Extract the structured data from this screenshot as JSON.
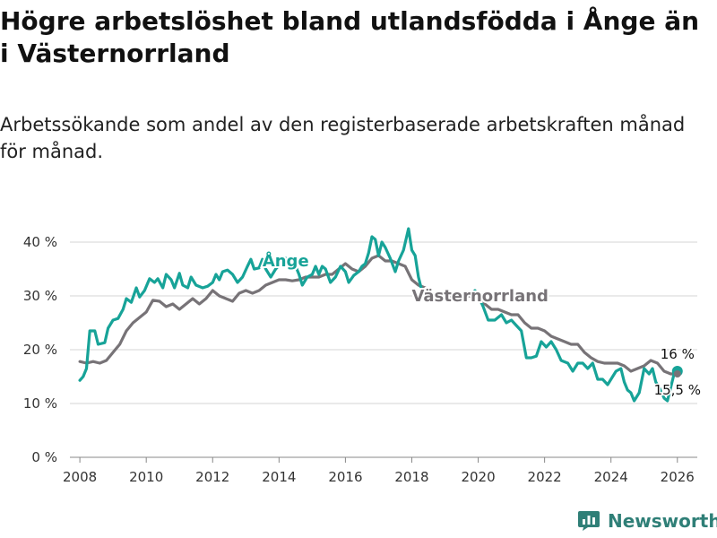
{
  "title": "Högre arbetslöshet bland utlandsfödda i Ånge än i Västernorrland",
  "subtitle": "Arbetssökande som andel av den registerbaserade arbetskraften månad för månad.",
  "brand": "Newsworthy",
  "colors": {
    "ange": "#17a398",
    "vasternorrland": "#777377",
    "grid": "#d6d6d6",
    "brand": "#2f7f77"
  },
  "chart_data": {
    "type": "line",
    "title": "Högre arbetslöshet bland utlandsfödda i Ånge än i Västernorrland",
    "xlabel": "",
    "ylabel": "",
    "xlim": [
      2007.7,
      2026.6
    ],
    "ylim": [
      0,
      40
    ],
    "x_ticks": [
      2008,
      2010,
      2012,
      2014,
      2016,
      2018,
      2020,
      2022,
      2024,
      2026
    ],
    "x_tick_labels": [
      "2008",
      "2010",
      "2012",
      "2014",
      "2016",
      "2018",
      "2020",
      "2022",
      "2024",
      "2026"
    ],
    "y_ticks": [
      0,
      10,
      20,
      30,
      40
    ],
    "y_tick_labels": [
      "0 %",
      "10 %",
      "20 %",
      "30 %",
      "40 %"
    ],
    "series": [
      {
        "name": "Ånge",
        "label": "Ånge",
        "color": "#17a398",
        "points": [
          [
            2008.0,
            14.3
          ],
          [
            2008.1,
            15
          ],
          [
            2008.2,
            16.5
          ],
          [
            2008.3,
            23.5
          ],
          [
            2008.45,
            23.5
          ],
          [
            2008.55,
            21
          ],
          [
            2008.75,
            21.3
          ],
          [
            2008.85,
            24
          ],
          [
            2009.0,
            25.5
          ],
          [
            2009.15,
            25.8
          ],
          [
            2009.3,
            27.5
          ],
          [
            2009.4,
            29.5
          ],
          [
            2009.55,
            28.8
          ],
          [
            2009.7,
            31.5
          ],
          [
            2009.8,
            29.8
          ],
          [
            2009.95,
            31
          ],
          [
            2010.1,
            33.2
          ],
          [
            2010.25,
            32.5
          ],
          [
            2010.35,
            33.2
          ],
          [
            2010.5,
            31.5
          ],
          [
            2010.6,
            34
          ],
          [
            2010.75,
            33
          ],
          [
            2010.85,
            31.5
          ],
          [
            2011.0,
            34.2
          ],
          [
            2011.1,
            32
          ],
          [
            2011.25,
            31.5
          ],
          [
            2011.35,
            33.5
          ],
          [
            2011.5,
            32
          ],
          [
            2011.7,
            31.5
          ],
          [
            2011.85,
            31.8
          ],
          [
            2012.0,
            32.5
          ],
          [
            2012.1,
            34
          ],
          [
            2012.2,
            33
          ],
          [
            2012.3,
            34.5
          ],
          [
            2012.45,
            34.8
          ],
          [
            2012.6,
            34
          ],
          [
            2012.75,
            32.5
          ],
          [
            2012.9,
            33.5
          ],
          [
            2013.05,
            35.5
          ],
          [
            2013.15,
            36.8
          ],
          [
            2013.25,
            35
          ],
          [
            2013.4,
            35.2
          ],
          [
            2013.5,
            36.8
          ],
          [
            2013.6,
            35
          ],
          [
            2013.75,
            33.5
          ],
          [
            2013.9,
            35
          ],
          [
            2014.05,
            36
          ],
          [
            2014.2,
            37
          ],
          [
            2014.35,
            36
          ],
          [
            2014.5,
            35.5
          ],
          [
            2014.6,
            34
          ],
          [
            2014.7,
            32
          ],
          [
            2014.85,
            33.5
          ],
          [
            2015.0,
            34
          ],
          [
            2015.1,
            35.5
          ],
          [
            2015.2,
            34
          ],
          [
            2015.3,
            35.5
          ],
          [
            2015.4,
            35
          ],
          [
            2015.55,
            32.5
          ],
          [
            2015.7,
            33.5
          ],
          [
            2015.85,
            35.5
          ],
          [
            2016.0,
            34.5
          ],
          [
            2016.1,
            32.5
          ],
          [
            2016.25,
            33.8
          ],
          [
            2016.4,
            34.5
          ],
          [
            2016.5,
            35.5
          ],
          [
            2016.6,
            36
          ],
          [
            2016.7,
            38
          ],
          [
            2016.8,
            41
          ],
          [
            2016.9,
            40.5
          ],
          [
            2017.0,
            37.5
          ],
          [
            2017.1,
            40
          ],
          [
            2017.2,
            39
          ],
          [
            2017.35,
            37
          ],
          [
            2017.5,
            34.5
          ],
          [
            2017.6,
            36.5
          ],
          [
            2017.75,
            38.5
          ],
          [
            2017.9,
            42.5
          ],
          [
            2018.0,
            38.5
          ],
          [
            2018.1,
            37.5
          ],
          [
            2018.2,
            33.5
          ],
          [
            2018.3,
            31
          ]
        ]
      },
      {
        "name": "Ånge (2020–2026)",
        "label": "",
        "color": "#17a398",
        "points": [
          [
            2019.9,
            31
          ],
          [
            2020.0,
            30
          ],
          [
            2020.15,
            28
          ],
          [
            2020.3,
            25.5
          ],
          [
            2020.5,
            25.5
          ],
          [
            2020.7,
            26.5
          ],
          [
            2020.85,
            25
          ],
          [
            2021.0,
            25.5
          ],
          [
            2021.15,
            24.5
          ],
          [
            2021.3,
            23.5
          ],
          [
            2021.45,
            18.5
          ],
          [
            2021.6,
            18.5
          ],
          [
            2021.75,
            18.8
          ],
          [
            2021.9,
            21.5
          ],
          [
            2022.05,
            20.5
          ],
          [
            2022.2,
            21.5
          ],
          [
            2022.35,
            20
          ],
          [
            2022.5,
            18
          ],
          [
            2022.7,
            17.5
          ],
          [
            2022.85,
            16
          ],
          [
            2023.0,
            17.5
          ],
          [
            2023.15,
            17.5
          ],
          [
            2023.3,
            16.5
          ],
          [
            2023.45,
            17.5
          ],
          [
            2023.6,
            14.5
          ],
          [
            2023.75,
            14.5
          ],
          [
            2023.9,
            13.5
          ],
          [
            2024.0,
            14.5
          ],
          [
            2024.15,
            16
          ],
          [
            2024.3,
            16.5
          ],
          [
            2024.4,
            14
          ],
          [
            2024.5,
            12.5
          ],
          [
            2024.6,
            12
          ],
          [
            2024.7,
            10.5
          ],
          [
            2024.85,
            12
          ],
          [
            2025.0,
            16.5
          ],
          [
            2025.15,
            15.5
          ],
          [
            2025.25,
            16.5
          ],
          [
            2025.35,
            14
          ],
          [
            2025.45,
            13
          ],
          [
            2025.6,
            11
          ],
          [
            2025.7,
            10.5
          ],
          [
            2025.8,
            13
          ],
          [
            2025.9,
            15.5
          ],
          [
            2026.0,
            16
          ]
        ]
      },
      {
        "name": "Västernorrland",
        "label": "Västernorrland",
        "color": "#777377",
        "points": [
          [
            2008.0,
            17.8
          ],
          [
            2008.2,
            17.5
          ],
          [
            2008.4,
            17.8
          ],
          [
            2008.6,
            17.5
          ],
          [
            2008.8,
            18
          ],
          [
            2009.0,
            19.5
          ],
          [
            2009.2,
            21
          ],
          [
            2009.4,
            23.5
          ],
          [
            2009.6,
            25
          ],
          [
            2009.8,
            26
          ],
          [
            2010.0,
            27
          ],
          [
            2010.2,
            29.2
          ],
          [
            2010.4,
            29
          ],
          [
            2010.6,
            28
          ],
          [
            2010.8,
            28.5
          ],
          [
            2011.0,
            27.5
          ],
          [
            2011.2,
            28.5
          ],
          [
            2011.4,
            29.5
          ],
          [
            2011.6,
            28.5
          ],
          [
            2011.8,
            29.5
          ],
          [
            2012.0,
            31
          ],
          [
            2012.2,
            30
          ],
          [
            2012.4,
            29.5
          ],
          [
            2012.6,
            29
          ],
          [
            2012.8,
            30.5
          ],
          [
            2013.0,
            31
          ],
          [
            2013.2,
            30.5
          ],
          [
            2013.4,
            31
          ],
          [
            2013.6,
            32
          ],
          [
            2013.8,
            32.5
          ],
          [
            2014.0,
            33
          ],
          [
            2014.2,
            33
          ],
          [
            2014.4,
            32.8
          ],
          [
            2014.6,
            33
          ],
          [
            2014.8,
            33.5
          ],
          [
            2015.0,
            33.5
          ],
          [
            2015.2,
            33.5
          ],
          [
            2015.4,
            34
          ],
          [
            2015.6,
            34
          ],
          [
            2015.8,
            35
          ],
          [
            2016.0,
            36
          ],
          [
            2016.2,
            35
          ],
          [
            2016.4,
            34.5
          ],
          [
            2016.6,
            35.5
          ],
          [
            2016.8,
            37
          ],
          [
            2017.0,
            37.5
          ],
          [
            2017.2,
            36.5
          ],
          [
            2017.4,
            36.5
          ],
          [
            2017.6,
            36
          ],
          [
            2017.8,
            35.5
          ],
          [
            2018.0,
            33
          ],
          [
            2018.2,
            32
          ],
          [
            2018.4,
            31.5
          ],
          [
            2018.6,
            30.5
          ],
          [
            2018.8,
            30
          ],
          [
            2019.0,
            29.8
          ],
          [
            2019.2,
            30
          ],
          [
            2019.4,
            30.2
          ],
          [
            2019.6,
            30
          ],
          [
            2019.8,
            30
          ],
          [
            2020.0,
            29.5
          ],
          [
            2020.2,
            28.5
          ],
          [
            2020.4,
            27.5
          ],
          [
            2020.6,
            27.5
          ],
          [
            2020.8,
            27
          ],
          [
            2021.0,
            26.5
          ],
          [
            2021.2,
            26.5
          ],
          [
            2021.4,
            25
          ],
          [
            2021.6,
            24
          ],
          [
            2021.8,
            24
          ],
          [
            2022.0,
            23.5
          ],
          [
            2022.2,
            22.5
          ],
          [
            2022.4,
            22
          ],
          [
            2022.6,
            21.5
          ],
          [
            2022.8,
            21
          ],
          [
            2023.0,
            21
          ],
          [
            2023.2,
            19.5
          ],
          [
            2023.4,
            18.5
          ],
          [
            2023.6,
            17.8
          ],
          [
            2023.8,
            17.5
          ],
          [
            2024.0,
            17.5
          ],
          [
            2024.2,
            17.5
          ],
          [
            2024.4,
            17
          ],
          [
            2024.6,
            16
          ],
          [
            2024.8,
            16.5
          ],
          [
            2025.0,
            17
          ],
          [
            2025.2,
            18
          ],
          [
            2025.4,
            17.5
          ],
          [
            2025.6,
            16
          ],
          [
            2025.8,
            15.5
          ],
          [
            2026.0,
            15.5
          ]
        ]
      }
    ],
    "end_points": [
      {
        "series": "Ånge",
        "x": 2026.0,
        "y": 16,
        "label": "16 %",
        "color": "#17a398"
      },
      {
        "series": "Västernorrland",
        "x": 2026.0,
        "y": 15.5,
        "label": "15,5 %",
        "color": "#777377"
      }
    ]
  }
}
